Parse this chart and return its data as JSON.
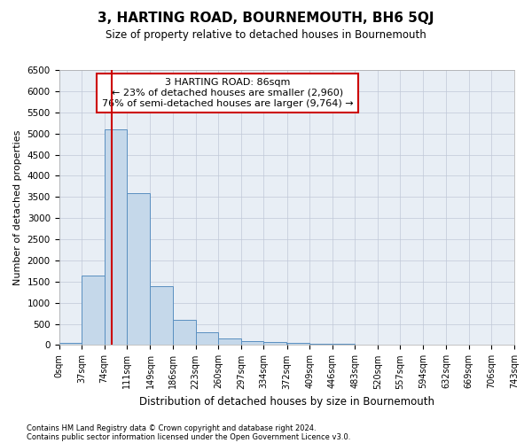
{
  "title": "3, HARTING ROAD, BOURNEMOUTH, BH6 5QJ",
  "subtitle": "Size of property relative to detached houses in Bournemouth",
  "xlabel": "Distribution of detached houses by size in Bournemouth",
  "ylabel": "Number of detached properties",
  "bin_edges": [
    0,
    37,
    74,
    111,
    149,
    186,
    223,
    260,
    297,
    334,
    372,
    409,
    446,
    483,
    520,
    557,
    594,
    632,
    669,
    706,
    743
  ],
  "bar_heights": [
    50,
    1650,
    5100,
    3600,
    1400,
    600,
    300,
    150,
    100,
    70,
    50,
    30,
    20,
    10,
    5,
    3,
    2,
    1,
    0,
    0
  ],
  "bar_color": "#c5d8ea",
  "bar_edge_color": "#5a8fc0",
  "bar_edge_width": 0.7,
  "property_size": 86,
  "red_line_color": "#cc0000",
  "annotation_text": "3 HARTING ROAD: 86sqm\n← 23% of detached houses are smaller (2,960)\n76% of semi-detached houses are larger (9,764) →",
  "annotation_box_color": "#cc0000",
  "ylim": [
    0,
    6500
  ],
  "yticks": [
    0,
    500,
    1000,
    1500,
    2000,
    2500,
    3000,
    3500,
    4000,
    4500,
    5000,
    5500,
    6000,
    6500
  ],
  "grid_color": "#c0c8d8",
  "background_color": "#e8eef5",
  "footnote1": "Contains HM Land Registry data © Crown copyright and database right 2024.",
  "footnote2": "Contains public sector information licensed under the Open Government Licence v3.0."
}
